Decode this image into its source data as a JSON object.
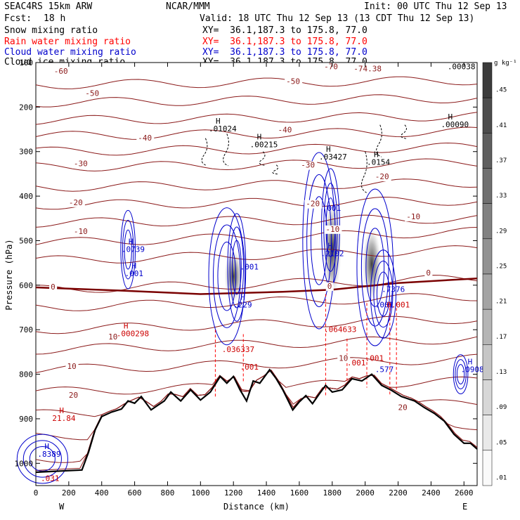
{
  "header": {
    "model": "SEAC4RS 15km ARW",
    "org": "NCAR/MMM",
    "init": "Init: 00 UTC Thu 12 Sep 13",
    "fcst_label": "Fcst:",
    "fcst_value": "18 h",
    "valid": "Valid: 18 UTC Thu 12 Sep 13 (13 CDT Thu 12 Sep 13)",
    "fields": [
      {
        "name": "Snow mixing ratio",
        "xy": "XY=  36.1,187.3 to 175.8, 77.0",
        "color": "#000000"
      },
      {
        "name": "Rain water mixing ratio",
        "xy": "XY=  36.1,187.3 to 175.8, 77.0",
        "color": "#ff0000"
      },
      {
        "name": "Cloud water mixing ratio",
        "xy": "XY=  36.1,187.3 to 175.8, 77.0",
        "color": "#0000cc"
      },
      {
        "name": "Cloud ice mixing ratio",
        "xy": "XY=  36.1,187.3 to 175.8, 77.0",
        "color": "#000000"
      }
    ]
  },
  "colorbar": {
    "unit": "g kg⁻¹",
    "ticks": [
      ".45",
      ".41",
      ".37",
      ".33",
      ".29",
      ".25",
      ".21",
      ".17",
      ".13",
      ".09",
      ".05",
      ".01"
    ]
  },
  "chart_data": {
    "type": "contour cross-section",
    "xlabel": "Distance (km)",
    "ylabel": "Pressure (hPa)",
    "xlim": [
      0,
      2680
    ],
    "ylim": [
      1050,
      100
    ],
    "x_ticks": [
      0,
      200,
      400,
      600,
      800,
      1000,
      1200,
      1400,
      1600,
      1800,
      2000,
      2200,
      2400,
      2600
    ],
    "y_ticks": [
      100,
      200,
      300,
      400,
      500,
      600,
      700,
      800,
      900,
      1000
    ],
    "left_end": "W",
    "right_end": "E",
    "temperature_labels": [
      {
        "text": "-60",
        "x": 110,
        "p": 125
      },
      {
        "text": "-70",
        "x": 1750,
        "p": 115
      },
      {
        "text": "-74.38",
        "x": 1930,
        "p": 120
      },
      {
        "text": "-50",
        "x": 300,
        "p": 175
      },
      {
        "text": "-50",
        "x": 1520,
        "p": 148
      },
      {
        "text": "-40",
        "x": 620,
        "p": 275
      },
      {
        "text": "-40",
        "x": 1470,
        "p": 257
      },
      {
        "text": "-30",
        "x": 230,
        "p": 333
      },
      {
        "text": "-30",
        "x": 1610,
        "p": 336
      },
      {
        "text": "-20",
        "x": 200,
        "p": 420
      },
      {
        "text": "-20",
        "x": 1640,
        "p": 423
      },
      {
        "text": "-20",
        "x": 2060,
        "p": 362
      },
      {
        "text": "-10",
        "x": 230,
        "p": 485
      },
      {
        "text": "-10",
        "x": 1760,
        "p": 480
      },
      {
        "text": "-10",
        "x": 2250,
        "p": 452
      },
      {
        "text": "0",
        "x": 90,
        "p": 610
      },
      {
        "text": "0",
        "x": 1770,
        "p": 608
      },
      {
        "text": "0",
        "x": 2370,
        "p": 578
      },
      {
        "text": "10",
        "x": 440,
        "p": 722
      },
      {
        "text": "10",
        "x": 190,
        "p": 788
      },
      {
        "text": "10",
        "x": 1840,
        "p": 770
      },
      {
        "text": "20",
        "x": 200,
        "p": 853
      },
      {
        "text": "20",
        "x": 2200,
        "p": 880
      }
    ],
    "temperature_levels_p": [
      150,
      190,
      230,
      265,
      300,
      335,
      380,
      420,
      460,
      505,
      545,
      610,
      650,
      700,
      745,
      790,
      840,
      890,
      940,
      990,
      1030
    ],
    "freezing_level": [
      [
        0,
        605
      ],
      [
        500,
        612
      ],
      [
        1000,
        620
      ],
      [
        1500,
        615
      ],
      [
        1800,
        610
      ],
      [
        2200,
        595
      ],
      [
        2680,
        585
      ]
    ],
    "terrain_p": [
      [
        0,
        1020
      ],
      [
        280,
        1015
      ],
      [
        320,
        975
      ],
      [
        360,
        925
      ],
      [
        400,
        895
      ],
      [
        460,
        885
      ],
      [
        520,
        878
      ],
      [
        560,
        860
      ],
      [
        600,
        865
      ],
      [
        640,
        850
      ],
      [
        700,
        880
      ],
      [
        740,
        870
      ],
      [
        780,
        860
      ],
      [
        820,
        840
      ],
      [
        880,
        860
      ],
      [
        940,
        835
      ],
      [
        1000,
        858
      ],
      [
        1060,
        840
      ],
      [
        1120,
        805
      ],
      [
        1160,
        820
      ],
      [
        1200,
        805
      ],
      [
        1240,
        835
      ],
      [
        1280,
        860
      ],
      [
        1320,
        815
      ],
      [
        1360,
        820
      ],
      [
        1420,
        790
      ],
      [
        1460,
        810
      ],
      [
        1500,
        835
      ],
      [
        1560,
        880
      ],
      [
        1600,
        862
      ],
      [
        1640,
        848
      ],
      [
        1680,
        866
      ],
      [
        1720,
        845
      ],
      [
        1760,
        825
      ],
      [
        1800,
        840
      ],
      [
        1860,
        835
      ],
      [
        1920,
        810
      ],
      [
        1980,
        815
      ],
      [
        2040,
        800
      ],
      [
        2100,
        825
      ],
      [
        2160,
        836
      ],
      [
        2220,
        850
      ],
      [
        2300,
        860
      ],
      [
        2360,
        875
      ],
      [
        2420,
        888
      ],
      [
        2480,
        905
      ],
      [
        2540,
        935
      ],
      [
        2600,
        955
      ],
      [
        2640,
        955
      ],
      [
        2680,
        968
      ]
    ],
    "extrema_labels": [
      {
        "field": "snow",
        "h": "H",
        "value": ".01024",
        "x": 1050,
        "p": 255
      },
      {
        "field": "snow",
        "h": "H",
        "value": ".00215",
        "x": 1300,
        "p": 290
      },
      {
        "field": "snow",
        "h": "H",
        "value": ".03427",
        "x": 1720,
        "p": 318
      },
      {
        "field": "snow",
        "h": "H",
        "value": ".0154",
        "x": 2010,
        "p": 330
      },
      {
        "field": "snow",
        "h": "H",
        "value": ".00090",
        "x": 2460,
        "p": 245
      },
      {
        "field": "snow",
        "h": "",
        "value": ".00038",
        "x": 2500,
        "p": 115
      },
      {
        "field": "cloud_water",
        "h": "H",
        "value": ".0739",
        "x": 520,
        "p": 525
      },
      {
        "field": "cloud_water",
        "h": "H",
        "value": ".001",
        "x": 540,
        "p": 580
      },
      {
        "field": "cloud_water",
        "h": "",
        "value": ".001",
        "x": 1240,
        "p": 565
      },
      {
        "field": "cloud_water",
        "h": "H",
        "value": ".229",
        "x": 1200,
        "p": 650
      },
      {
        "field": "cloud_water",
        "h": "",
        "value": ".001",
        "x": 1740,
        "p": 433
      },
      {
        "field": "cloud_water",
        "h": "H",
        "value": ".2102",
        "x": 1730,
        "p": 535
      },
      {
        "field": "cloud_water",
        "h": "",
        "value": ".7376",
        "x": 2100,
        "p": 615
      },
      {
        "field": "cloud_water",
        "h": "",
        "value": ".001",
        "x": 2060,
        "p": 650
      },
      {
        "field": "cloud_water",
        "h": "",
        "value": ".577",
        "x": 2060,
        "p": 795
      },
      {
        "field": "cloud_water",
        "h": "H",
        "value": ".0908",
        "x": 2580,
        "p": 795
      },
      {
        "field": "cloud_water",
        "h": "H",
        "value": ".8389",
        "x": 10,
        "p": 985
      },
      {
        "field": "rain",
        "h": "H",
        "value": ".000298",
        "x": 490,
        "p": 715
      },
      {
        "field": "rain",
        "h": "",
        "value": ".036337",
        "x": 1130,
        "p": 750
      },
      {
        "field": "rain",
        "h": "",
        "value": ".001",
        "x": 1240,
        "p": 790
      },
      {
        "field": "rain",
        "h": "",
        "value": ".064633",
        "x": 1750,
        "p": 705
      },
      {
        "field": "rain",
        "h": "",
        "value": ".001",
        "x": 1890,
        "p": 780
      },
      {
        "field": "rain",
        "h": "",
        "value": "0.001",
        "x": 2130,
        "p": 650
      },
      {
        "field": "rain",
        "h": "",
        "value": ".001",
        "x": 2000,
        "p": 770
      },
      {
        "field": "rain",
        "h": "H",
        "value": "21.84",
        "x": 100,
        "p": 905
      },
      {
        "field": "rain",
        "h": "",
        "value": ".031",
        "x": 30,
        "p": 1040
      }
    ],
    "cloud_ice_shading": [
      {
        "x": 1200,
        "p_top": 520,
        "p_bottom": 640,
        "max": 0.25
      },
      {
        "x": 1800,
        "p_top": 410,
        "p_bottom": 625,
        "max": 0.45
      },
      {
        "x": 2040,
        "p_top": 470,
        "p_bottom": 635,
        "max": 0.41
      }
    ]
  }
}
